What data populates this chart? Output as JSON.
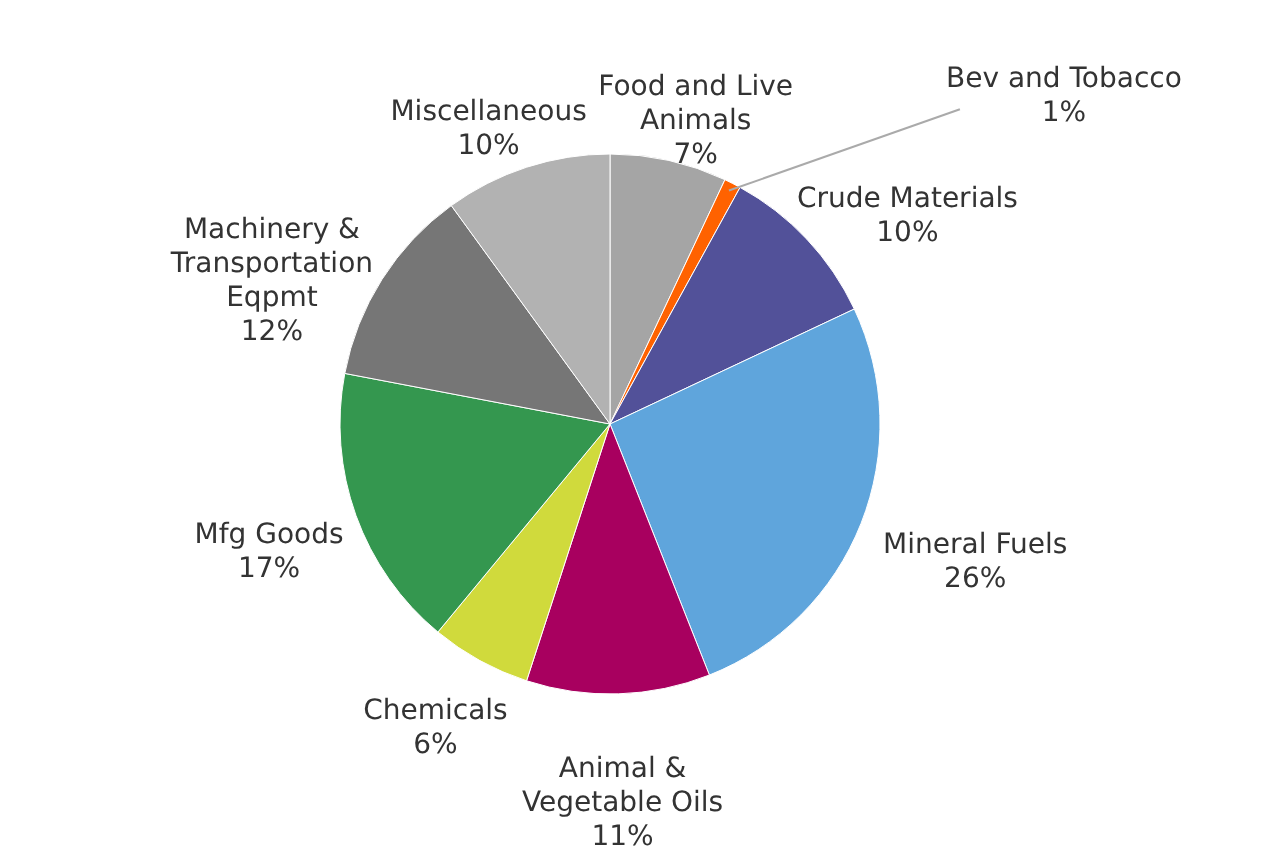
{
  "chart_data": {
    "type": "pie",
    "categories": [
      "Food and Live Animals",
      "Bev and Tobacco",
      "Crude Materials",
      "Mineral Fuels",
      "Animal & Vegetable Oils",
      "Chemicals",
      "Mfg Goods",
      "Machinery & Transportation Eqpmt",
      "Miscellaneous"
    ],
    "values": [
      7,
      1,
      10,
      26,
      11,
      6,
      17,
      12,
      10
    ],
    "value_labels": [
      "7%",
      "1%",
      "10%",
      "26%",
      "11%",
      "6%",
      "17%",
      "12%",
      "10%"
    ],
    "colors": [
      "#a5a5a5",
      "#ff6200",
      "#525199",
      "#5fa5dc",
      "#a8005f",
      "#d0da3c",
      "#34974f",
      "#767676",
      "#b2b2b2"
    ]
  }
}
